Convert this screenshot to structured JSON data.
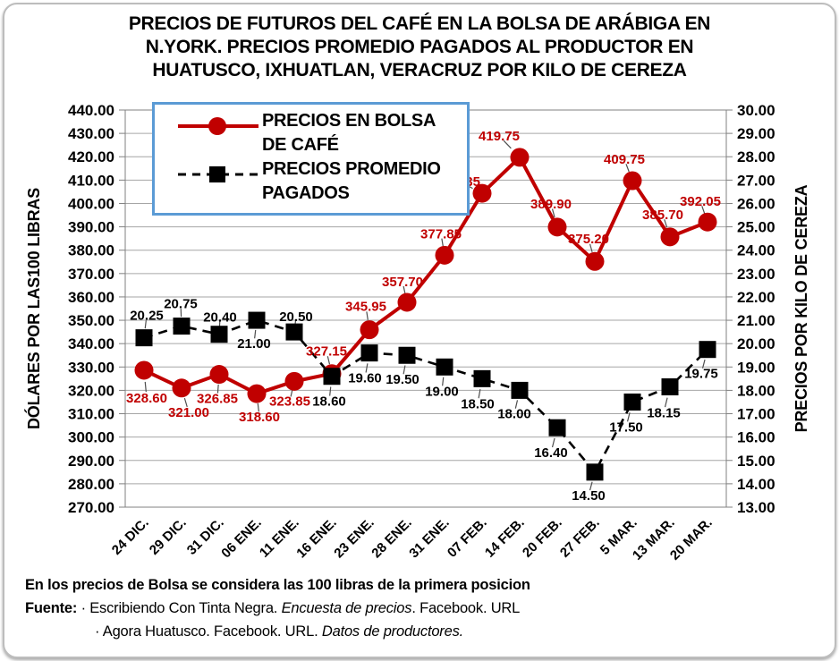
{
  "title_lines": [
    "PRECIOS DE FUTUROS DEL CAFÉ EN LA BOLSA DE ARÁBIGA EN",
    "N.YORK. PRECIOS PROMEDIO PAGADOS AL PRODUCTOR EN",
    "HUATUSCO, IXHUATLAN, VERACRUZ POR KILO DE CEREZA"
  ],
  "chart_data": {
    "type": "line",
    "categories": [
      "24 DIC.",
      "29 DIC.",
      "31 DIC.",
      "06 ENE.",
      "11 ENE.",
      "16 ENE.",
      "23 ENE.",
      "28 ENE.",
      "31 ENE.",
      "07 FEB.",
      "14 FEB.",
      "20 FEB.",
      "27 FEB.",
      "5 MAR.",
      "13 MAR.",
      "20 MAR."
    ],
    "series": [
      {
        "name": "PRECIOS EN BOLSA DE CAFÉ",
        "axis": "left",
        "color": "#C00000",
        "marker": "circle",
        "line_style": "solid",
        "values": [
          328.6,
          321.0,
          326.85,
          318.6,
          323.85,
          327.15,
          345.95,
          357.7,
          377.85,
          404.35,
          419.75,
          389.9,
          375.2,
          409.75,
          385.7,
          392.05
        ],
        "label_offsets": [
          [
            3,
            31
          ],
          [
            8,
            27
          ],
          [
            -2,
            27
          ],
          [
            3,
            26
          ],
          [
            -5,
            22
          ],
          [
            -6,
            -25
          ],
          [
            -4,
            -26
          ],
          [
            -5,
            -23
          ],
          [
            -4,
            -24
          ],
          [
            -25,
            -13
          ],
          [
            -23,
            -24
          ],
          [
            -7,
            -26
          ],
          [
            -7,
            -25
          ],
          [
            -9,
            -24
          ],
          [
            -8,
            -25
          ],
          [
            -8,
            -23
          ]
        ]
      },
      {
        "name": "PRECIOS PROMEDIO PAGADOS",
        "axis": "right",
        "color": "#000000",
        "marker": "square",
        "line_style": "dashed",
        "values": [
          20.25,
          20.75,
          20.4,
          21.0,
          20.5,
          18.6,
          19.6,
          19.5,
          19.0,
          18.5,
          18.0,
          16.4,
          14.5,
          17.5,
          18.15,
          19.75
        ],
        "label_offsets": [
          [
            3,
            -25
          ],
          [
            -1,
            -25
          ],
          [
            1,
            -19
          ],
          [
            -3,
            26
          ],
          [
            2,
            -17
          ],
          [
            -3,
            28
          ],
          [
            -5,
            28
          ],
          [
            -5,
            27
          ],
          [
            -3,
            27
          ],
          [
            -5,
            28
          ],
          [
            -6,
            26
          ],
          [
            -7,
            28
          ],
          [
            -7,
            26
          ],
          [
            -7,
            28
          ],
          [
            -7,
            29
          ],
          [
            -7,
            27
          ]
        ]
      }
    ],
    "left_axis": {
      "title": "DÓLARES POR LAS100 LIBRAS",
      "min": 270,
      "max": 440,
      "step": 10
    },
    "right_axis": {
      "title": "PRECIOS POR KILO DE CEREZA",
      "min": 13,
      "max": 30,
      "step": 1
    },
    "grid": true,
    "legend_position": "top-left-overlay",
    "data_labels": "two-decimals"
  },
  "legend": {
    "border_color": "#5B9BD5"
  },
  "style_colors": {
    "grid": "#A6A6A6",
    "plot_border": "#808080",
    "leader_line": "#4d4d4d"
  },
  "footnote": {
    "line1": "En los precios de Bolsa se considera las 100 libras de la primera posicion",
    "fuente_label": "Fuente:",
    "line2_plain": "· Escribiendo Con Tinta Negra.",
    "line2_italic": "Encuesta de precios",
    "line2_tail": ". Facebook. URL",
    "line3_plain": "· Agora Huatusco. Facebook. URL.",
    "line3_italic": "Datos de productores."
  }
}
